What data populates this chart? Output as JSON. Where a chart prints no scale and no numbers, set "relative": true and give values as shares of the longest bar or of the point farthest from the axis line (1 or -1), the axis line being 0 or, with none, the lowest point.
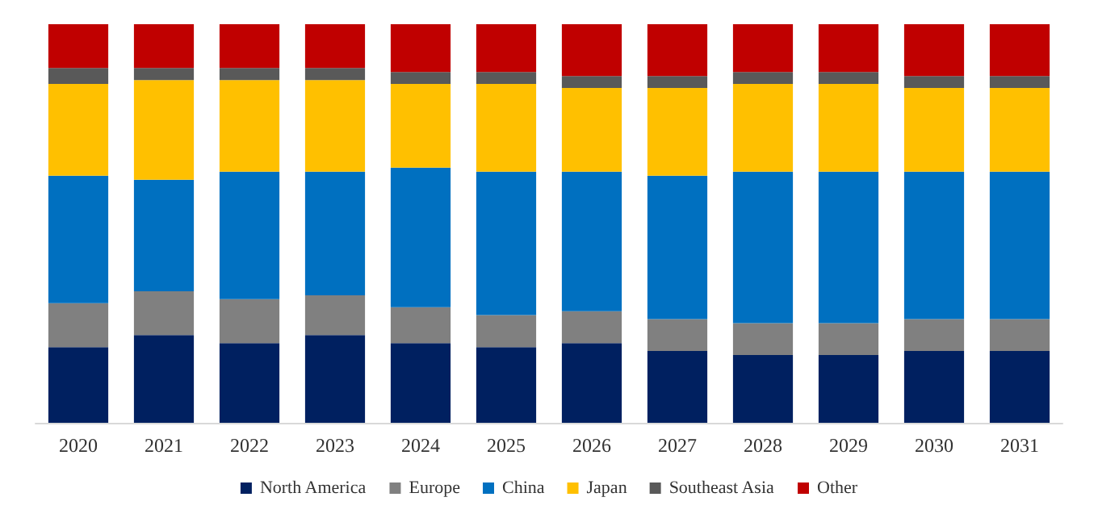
{
  "chart_data": {
    "type": "bar",
    "stacked": true,
    "relative": true,
    "legend": "bottom",
    "categories": [
      "2020",
      "2021",
      "2022",
      "2023",
      "2024",
      "2025",
      "2026",
      "2027",
      "2028",
      "2029",
      "2030",
      "2031"
    ],
    "series": [
      {
        "name": "North America",
        "color": "#002060",
        "values": [
          0.19,
          0.22,
          0.2,
          0.22,
          0.2,
          0.19,
          0.2,
          0.18,
          0.17,
          0.17,
          0.18,
          0.18
        ]
      },
      {
        "name": "Europe",
        "color": "#808080",
        "values": [
          0.11,
          0.11,
          0.11,
          0.1,
          0.09,
          0.08,
          0.08,
          0.08,
          0.08,
          0.08,
          0.08,
          0.08
        ]
      },
      {
        "name": "China",
        "color": "#0070c0",
        "values": [
          0.32,
          0.28,
          0.32,
          0.31,
          0.35,
          0.36,
          0.35,
          0.36,
          0.38,
          0.38,
          0.37,
          0.37
        ]
      },
      {
        "name": "Japan",
        "color": "#ffc000",
        "values": [
          0.23,
          0.25,
          0.23,
          0.23,
          0.21,
          0.22,
          0.21,
          0.22,
          0.22,
          0.22,
          0.21,
          0.21
        ]
      },
      {
        "name": "Southeast Asia",
        "color": "#595959",
        "values": [
          0.04,
          0.03,
          0.03,
          0.03,
          0.03,
          0.03,
          0.03,
          0.03,
          0.03,
          0.03,
          0.03,
          0.03
        ]
      },
      {
        "name": "Other",
        "color": "#c00000",
        "values": [
          0.11,
          0.11,
          0.11,
          0.11,
          0.12,
          0.12,
          0.13,
          0.13,
          0.12,
          0.12,
          0.13,
          0.13
        ]
      }
    ]
  }
}
